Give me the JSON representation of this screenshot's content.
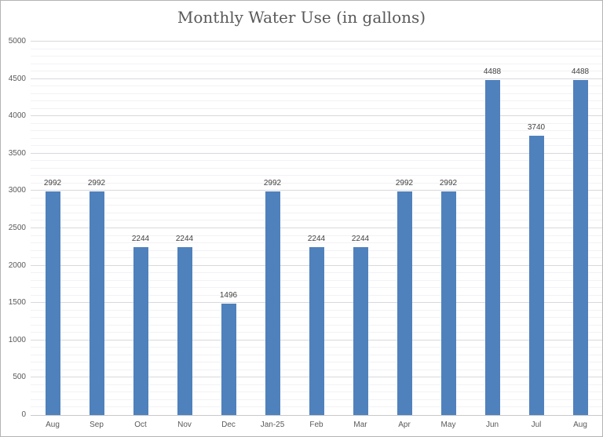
{
  "chart_data": {
    "type": "bar",
    "title": "Monthly Water Use (in gallons)",
    "categories": [
      "Aug",
      "Sep",
      "Oct",
      "Nov",
      "Dec",
      "Jan-25",
      "Feb",
      "Mar",
      "Apr",
      "May",
      "Jun",
      "Jul",
      "Aug"
    ],
    "values": [
      2992,
      2992,
      2244,
      2244,
      1496,
      2992,
      2244,
      2244,
      2992,
      2992,
      4488,
      3740,
      4488
    ],
    "data_labels": [
      "2992",
      "2992",
      "2244",
      "2244",
      "1496",
      "2992",
      "2244",
      "2244",
      "2992",
      "2992",
      "4488",
      "3740",
      "4488"
    ],
    "xlabel": "",
    "ylabel": "",
    "ylim": [
      0,
      5000
    ],
    "y_major_step": 500,
    "y_minor_step": 100,
    "y_tick_labels": [
      "0",
      "500",
      "1000",
      "1500",
      "2000",
      "2500",
      "3000",
      "3500",
      "4000",
      "4500",
      "5000"
    ],
    "legend": "none",
    "grid": "horizontal major every 500 + faint minor every 100",
    "colors": {
      "bar": "#4f81bd",
      "title_text": "#595959",
      "axis_text": "#595959",
      "data_label_text": "#404040",
      "gridline_major": "#d9d9de",
      "gridline_minor": "#f2f2f7",
      "axis_line": "#c9c9c9",
      "background": "#ffffff",
      "border": "#b4b4b4"
    }
  }
}
